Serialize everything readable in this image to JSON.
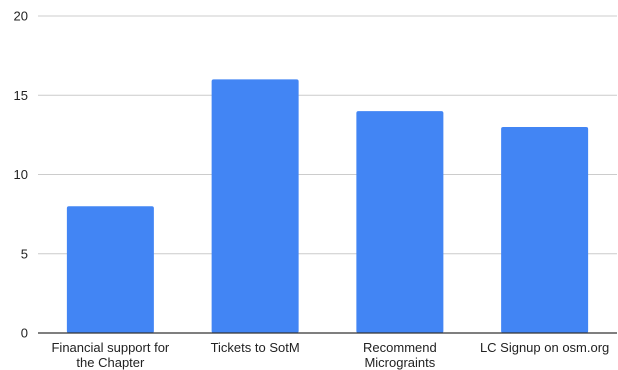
{
  "chart_data": {
    "type": "bar",
    "categories": [
      [
        "Financial support for",
        "the Chapter"
      ],
      [
        "Tickets to SotM"
      ],
      [
        "Recommend",
        "Micrograints"
      ],
      [
        "LC Signup on osm.org"
      ]
    ],
    "values": [
      8,
      16,
      14,
      13
    ],
    "ylim": [
      0,
      20
    ],
    "yticks": [
      0,
      5,
      10,
      15,
      20
    ],
    "grid": true,
    "bar_color": "#4285f4",
    "title": "",
    "xlabel": "",
    "ylabel": ""
  }
}
